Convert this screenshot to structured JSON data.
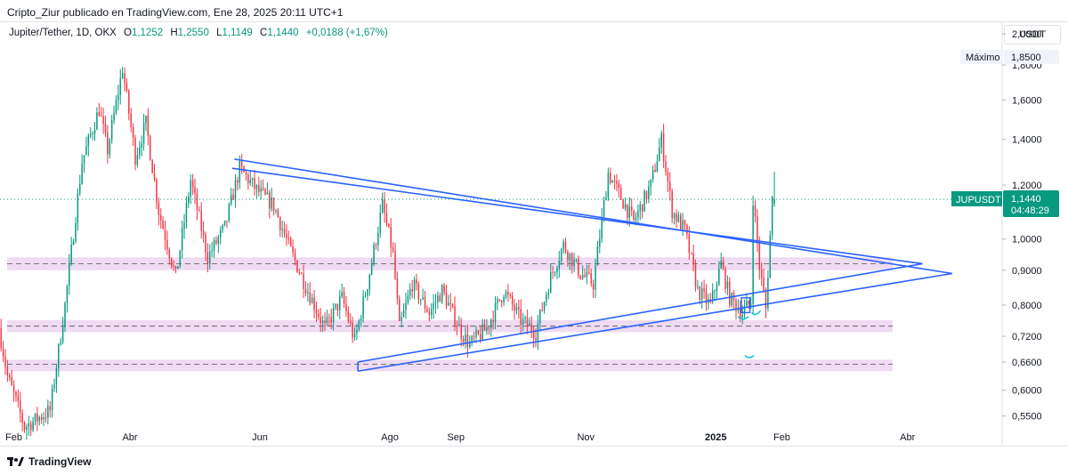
{
  "header": {
    "publisher": "Cripto_Ziur publicado en TradingView.com, Ene 28, 2025 20:11 UTC+1"
  },
  "legend": {
    "symbol": "Jupiter/Tether, 1D, OKX",
    "o_label": "O",
    "o_value": "1,1252",
    "h_label": "H",
    "h_value": "1,2550",
    "l_label": "L",
    "l_value": "1,1149",
    "c_label": "C",
    "c_value": "1,1440",
    "change": "+0,0188 (+1,67%)"
  },
  "currency": "USDT",
  "max_tag": {
    "label": "Máximo",
    "value": "1,8500"
  },
  "price_tag": {
    "symbol": "JUPUSDT",
    "value": "1,1440",
    "countdown": "04:48:29"
  },
  "footer": {
    "brand": "TradingView"
  },
  "colors": {
    "up": "#089981",
    "down": "#f23645",
    "trendline": "#2962ff",
    "zone": "#e1bee7",
    "accent_tag": "#089981",
    "ellipse": "#00bcd4"
  },
  "chart_data": {
    "type": "candlestick",
    "scale": "log",
    "x_ticks": [
      "Feb",
      "Abr",
      "Jun",
      "Ago",
      "Sep",
      "Nov",
      "2025",
      "Feb",
      "Abr"
    ],
    "y_ticks": [
      "2,0000",
      "1,8000",
      "1,6000",
      "1,4000",
      "1,2000",
      "1,0000",
      "0,9000",
      "0,8000",
      "0,7200",
      "0,6600",
      "0,6000",
      "0,5500"
    ],
    "y_values": [
      2.0,
      1.8,
      1.6,
      1.4,
      1.2,
      1.0,
      0.9,
      0.8,
      0.72,
      0.66,
      0.6,
      0.55
    ],
    "y_range": [
      0.53,
      2.08
    ],
    "x_range": [
      "2024-01-31",
      "2025-05-15"
    ],
    "tick_dates": [
      "2024-02-01",
      "2024-04-01",
      "2024-06-01",
      "2024-08-01",
      "2024-09-01",
      "2024-11-01",
      "2025-01-01",
      "2025-02-01",
      "2025-04-01"
    ],
    "series_range": [
      "2024-01-31",
      "2025-01-28"
    ],
    "waypoints": [
      [
        "2024-01-31",
        0.74
      ],
      [
        "2024-02-04",
        0.63
      ],
      [
        "2024-02-12",
        0.53
      ],
      [
        "2024-02-24",
        0.56
      ],
      [
        "2024-03-02",
        0.8
      ],
      [
        "2024-03-10",
        1.3
      ],
      [
        "2024-03-18",
        1.55
      ],
      [
        "2024-03-22",
        1.35
      ],
      [
        "2024-03-29",
        1.78
      ],
      [
        "2024-04-04",
        1.32
      ],
      [
        "2024-04-09",
        1.48
      ],
      [
        "2024-04-15",
        1.1
      ],
      [
        "2024-04-23",
        0.88
      ],
      [
        "2024-04-30",
        1.22
      ],
      [
        "2024-05-08",
        0.94
      ],
      [
        "2024-05-16",
        1.04
      ],
      [
        "2024-05-23",
        1.27
      ],
      [
        "2024-05-31",
        1.18
      ],
      [
        "2024-06-08",
        1.12
      ],
      [
        "2024-06-16",
        0.96
      ],
      [
        "2024-06-24",
        0.84
      ],
      [
        "2024-07-02",
        0.74
      ],
      [
        "2024-07-10",
        0.82
      ],
      [
        "2024-07-16",
        0.71
      ],
      [
        "2024-07-22",
        0.86
      ],
      [
        "2024-07-29",
        1.12
      ],
      [
        "2024-08-03",
        0.95
      ],
      [
        "2024-08-06",
        0.74
      ],
      [
        "2024-08-12",
        0.86
      ],
      [
        "2024-08-20",
        0.78
      ],
      [
        "2024-08-26",
        0.84
      ],
      [
        "2024-09-04",
        0.73
      ],
      [
        "2024-09-08",
        0.7
      ],
      [
        "2024-09-16",
        0.74
      ],
      [
        "2024-09-24",
        0.84
      ],
      [
        "2024-10-02",
        0.76
      ],
      [
        "2024-10-09",
        0.73
      ],
      [
        "2024-10-16",
        0.88
      ],
      [
        "2024-10-22",
        0.98
      ],
      [
        "2024-10-30",
        0.89
      ],
      [
        "2024-11-05",
        0.86
      ],
      [
        "2024-11-12",
        1.25
      ],
      [
        "2024-11-18",
        1.15
      ],
      [
        "2024-11-24",
        1.06
      ],
      [
        "2024-12-02",
        1.2
      ],
      [
        "2024-12-07",
        1.4
      ],
      [
        "2024-12-12",
        1.1
      ],
      [
        "2024-12-18",
        1.03
      ],
      [
        "2024-12-24",
        0.84
      ],
      [
        "2024-12-30",
        0.8
      ],
      [
        "2025-01-04",
        0.92
      ],
      [
        "2025-01-08",
        0.82
      ],
      [
        "2025-01-14",
        0.78
      ],
      [
        "2025-01-18",
        0.81
      ],
      [
        "2025-01-19",
        1.15
      ],
      [
        "2025-01-22",
        0.91
      ],
      [
        "2025-01-25",
        0.79
      ],
      [
        "2025-01-28",
        1.144
      ]
    ],
    "last": {
      "date": "2025-01-28",
      "open": 1.1252,
      "high": 1.255,
      "low": 1.1149,
      "close": 1.144
    },
    "zones": [
      [
        0.9,
        0.94
      ],
      [
        0.73,
        0.76
      ],
      [
        0.64,
        0.665
      ]
    ],
    "zone_dashes": [
      0.92,
      0.745,
      0.655
    ],
    "zone_end": "2025-03-25",
    "trendlines": [
      [
        [
          "2024-05-20",
          1.31
        ],
        [
          "2025-04-22",
          0.89
        ]
      ],
      [
        [
          "2024-05-19",
          1.27
        ],
        [
          "2025-04-08",
          0.92
        ]
      ],
      [
        [
          "2024-07-17",
          0.64
        ],
        [
          "2025-04-22",
          0.89
        ]
      ],
      [
        [
          "2024-07-17",
          0.66
        ],
        [
          "2025-04-08",
          0.92
        ]
      ],
      [
        [
          "2024-07-17",
          0.64
        ],
        [
          "2024-07-17",
          0.66
        ]
      ]
    ],
    "current_price": 1.144
  }
}
